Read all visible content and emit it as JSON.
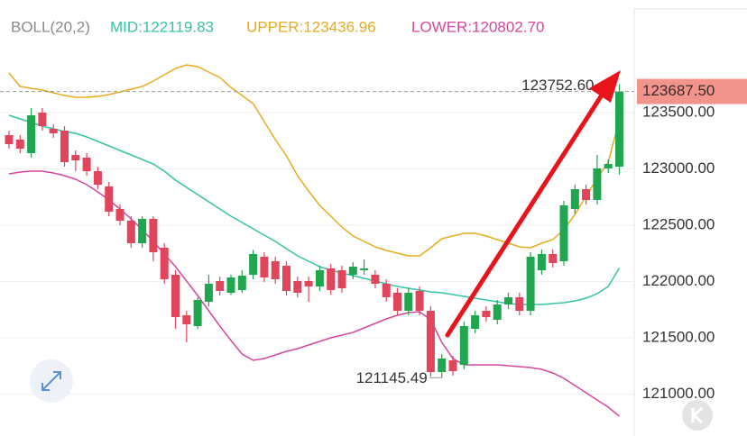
{
  "chart_data": {
    "type": "candlestick",
    "indicator": "BOLL(20,2)",
    "open": [
      123300,
      123260,
      123140,
      123500,
      123356,
      123340,
      123124,
      123100,
      122980,
      122844,
      122644,
      122540,
      122340,
      122556,
      122300,
      122060,
      121700,
      121604,
      121820,
      122004,
      121900,
      121924,
      122060,
      122220,
      122180,
      122140,
      122004,
      122004,
      121956,
      122116,
      122100,
      122060,
      122100,
      122060,
      121980,
      121900,
      121740,
      121916,
      121740,
      121196,
      121300,
      121260,
      121580,
      121740,
      121660,
      121796,
      121860,
      121740,
      122100,
      122244,
      122180,
      122644,
      122820,
      122724,
      123004,
      123020
    ],
    "high": [
      123340,
      123300,
      123540,
      123540,
      123396,
      123380,
      123164,
      123140,
      123020,
      122884,
      122684,
      122580,
      122580,
      122580,
      122340,
      122100,
      121740,
      121860,
      122060,
      122044,
      122060,
      122100,
      122280,
      122260,
      122220,
      122180,
      122044,
      122044,
      122140,
      122156,
      122140,
      122172,
      122196,
      122100,
      122020,
      121940,
      121940,
      121956,
      121780,
      121356,
      121340,
      121644,
      121740,
      121780,
      121836,
      121900,
      121900,
      122260,
      122284,
      122284,
      122716,
      122860,
      122860,
      123124,
      123084,
      123752.6
    ],
    "low": [
      123180,
      123140,
      123100,
      123340,
      123276,
      123020,
      122980,
      122940,
      122820,
      122580,
      122500,
      122300,
      122300,
      122180,
      121980,
      121580,
      121460,
      121580,
      121780,
      121876,
      121880,
      121900,
      122020,
      121996,
      121980,
      121876,
      121860,
      121820,
      121916,
      121884,
      121900,
      122020,
      122060,
      121940,
      121820,
      121700,
      121700,
      121700,
      121156,
      121145.49,
      121164,
      121220,
      121540,
      121644,
      121620,
      121756,
      121700,
      121700,
      122060,
      122124,
      122140,
      122604,
      122684,
      122684,
      122964,
      122950
    ],
    "close": [
      123220,
      123180,
      123476,
      123380,
      123316,
      123060,
      123076,
      122980,
      122860,
      122620,
      122540,
      122340,
      122556,
      122260,
      122020,
      121684,
      121620,
      121836,
      121980,
      121916,
      122036,
      122052,
      122244,
      122036,
      122020,
      121916,
      121900,
      121956,
      122100,
      121924,
      121940,
      122132,
      122116,
      121980,
      121860,
      121740,
      121900,
      121740,
      121196,
      121316,
      121204,
      121604,
      121700,
      121684,
      121796,
      121860,
      121740,
      122220,
      122244,
      122164,
      122676,
      122820,
      122724,
      123004,
      123044,
      123687.5
    ],
    "up_color": "#1fa64f",
    "down_color": "#e0455c",
    "series": [
      {
        "name": "MID:122119.83",
        "color": "#35c4a4",
        "values": [
          123476,
          123444,
          123412,
          123380,
          123356,
          123332,
          123316,
          123284,
          123244,
          123204,
          123164,
          123124,
          123084,
          123044,
          122980,
          122900,
          122836,
          122772,
          122708,
          122644,
          122580,
          122524,
          122468,
          122412,
          122356,
          122292,
          122228,
          122180,
          122132,
          122100,
          122076,
          122052,
          122028,
          122004,
          121980,
          121956,
          121940,
          121924,
          121908,
          121900,
          121884,
          121868,
          121852,
          121836,
          121820,
          121804,
          121796,
          121796,
          121796,
          121804,
          121812,
          121828,
          121852,
          121892,
          121956,
          122119.83
        ]
      },
      {
        "name": "UPPER:123436.96",
        "color": "#e6ac1e",
        "values": [
          123852,
          123732,
          123716,
          123700,
          123676,
          123652,
          123636,
          123636,
          123644,
          123660,
          123684,
          123708,
          123732,
          123780,
          123836,
          123892,
          123924,
          123908,
          123860,
          123812,
          123724,
          123652,
          123580,
          123420,
          123260,
          123116,
          122940,
          122804,
          122676,
          122580,
          122484,
          122404,
          122356,
          122308,
          122276,
          122252,
          122228,
          122228,
          122300,
          122380,
          122404,
          122428,
          122428,
          122404,
          122372,
          122340,
          122308,
          122300,
          122340,
          122372,
          122460,
          122596,
          122756,
          122916,
          123060,
          123436.96
        ]
      },
      {
        "name": "LOWER:120802.70",
        "color": "#d6479c",
        "values": [
          122956,
          122972,
          122980,
          122980,
          122964,
          122940,
          122908,
          122860,
          122796,
          122724,
          122644,
          122556,
          122460,
          122356,
          122244,
          122132,
          122004,
          121876,
          121740,
          121604,
          121476,
          121356,
          121300,
          121316,
          121348,
          121380,
          121404,
          121436,
          121468,
          121500,
          121524,
          121548,
          121588,
          121628,
          121668,
          121700,
          121724,
          121732,
          121660,
          121460,
          121316,
          121260,
          121260,
          121260,
          121260,
          121252,
          121244,
          121236,
          121220,
          121188,
          121140,
          121076,
          121012,
          120948,
          120884,
          120802.7
        ]
      }
    ],
    "high_label": "123752.60",
    "low_label": "121145.49",
    "close_label": "123687.50",
    "ylim": [
      120628,
      124500
    ],
    "yticks": [
      {
        "value": 121000,
        "label": "121000.00"
      },
      {
        "value": 121500,
        "label": "121500.00"
      },
      {
        "value": 122000,
        "label": "122000.00"
      },
      {
        "value": 122500,
        "label": "122500.00"
      },
      {
        "value": 123000,
        "label": "123000.00"
      },
      {
        "value": 123500,
        "label": "123500.00"
      }
    ],
    "grid": true
  }
}
